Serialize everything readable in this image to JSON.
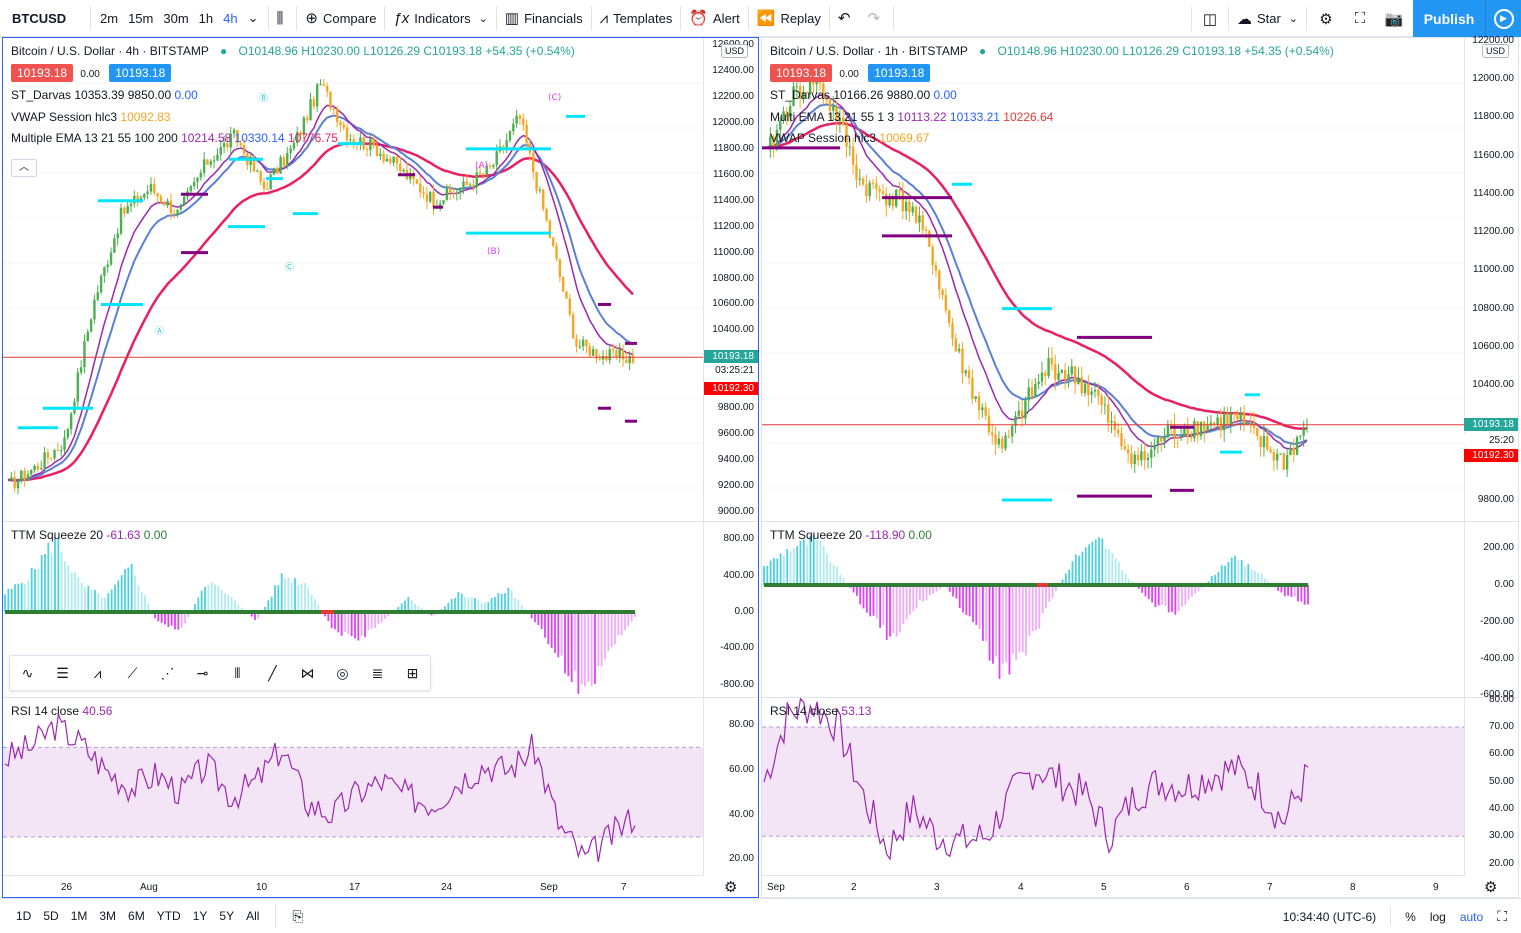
{
  "toolbar": {
    "symbol": "BTCUSD",
    "intervals": [
      "2m",
      "15m",
      "30m",
      "1h",
      "4h"
    ],
    "active_interval": "4h",
    "compare_label": "Compare",
    "indicators_label": "Indicators",
    "financials_label": "Financials",
    "templates_label": "Templates",
    "alert_label": "Alert",
    "replay_label": "Replay",
    "layout_name": "Star",
    "publish_label": "Publish"
  },
  "left_chart": {
    "title": "Bitcoin / U.S. Dollar · 4h · BITSTAMP",
    "ohlc": "O10148.96 H10230.00 L10126.29 C10193.18 +54.35 (+0.54%)",
    "sell_price": "10193.18",
    "spread": "0.00",
    "buy_price": "10193.18",
    "indicators": [
      {
        "name": "ST_Darvas",
        "values": [
          {
            "v": "10353.39",
            "c": "#131722"
          },
          {
            "v": "9850.00",
            "c": "#131722"
          },
          {
            "v": "0.00",
            "c": "#2962ff"
          }
        ]
      },
      {
        "name": "VWAP Session hlc3",
        "values": [
          {
            "v": "10092.83",
            "c": "#f5a623"
          }
        ]
      },
      {
        "name": "Multiple EMA 13 21 55 100 200",
        "values": [
          {
            "v": "10214.58",
            "c": "#9c27b0"
          },
          {
            "v": "10330.14",
            "c": "#2962ff"
          },
          {
            "v": "10776.75",
            "c": "#e91e63"
          }
        ]
      }
    ],
    "price_axis": [
      "12400.00",
      "12200.00",
      "12000.00",
      "11800.00",
      "11600.00",
      "11400.00",
      "11200.00",
      "11000.00",
      "10800.00",
      "10600.00",
      "10400.00",
      "9800.00",
      "9600.00",
      "9400.00",
      "9200.00",
      "9000.00"
    ],
    "price_axis_top": "12600.00",
    "last_price": "10193.18",
    "countdown": "03:25:21",
    "low_tag": "10192.30",
    "currency": "USD",
    "squeeze": {
      "label": "TTM Squeeze 20",
      "v1": "-61.63",
      "v2": "0.00",
      "axis": [
        "800.00",
        "400.00",
        "0.00",
        "-400.00",
        "-800.00"
      ]
    },
    "rsi": {
      "label": "RSI 14 close",
      "value": "40.56",
      "axis": [
        "80.00",
        "60.00",
        "40.00",
        "20.00"
      ]
    },
    "time_axis": [
      "26",
      "Aug",
      "10",
      "17",
      "24",
      "Sep",
      "7"
    ],
    "wave_labels": [
      "Ⓐ",
      "Ⓑ",
      "Ⓒ",
      "(A)",
      "(B)",
      "(C)"
    ]
  },
  "right_chart": {
    "title": "Bitcoin / U.S. Dollar · 1h · BITSTAMP",
    "ohlc": "O10148.96 H10230.00 L10126.29 C10193.18 +54.35 (+0.54%)",
    "sell_price": "10193.18",
    "spread": "0.00",
    "buy_price": "10193.18",
    "indicators": [
      {
        "name": "ST_Darvas",
        "values": [
          {
            "v": "10166.26",
            "c": "#131722"
          },
          {
            "v": "9880.00",
            "c": "#131722"
          },
          {
            "v": "0.00",
            "c": "#2962ff"
          }
        ]
      },
      {
        "name": "Multi EMA 13 21 55 1 3",
        "values": [
          {
            "v": "10113.22",
            "c": "#9c27b0"
          },
          {
            "v": "10133.21",
            "c": "#2962ff"
          },
          {
            "v": "10226.64",
            "c": "#e53935"
          }
        ]
      },
      {
        "name": "VWAP Session hlc3",
        "values": [
          {
            "v": "10069.67",
            "c": "#f5a623"
          }
        ]
      }
    ],
    "price_axis": [
      "12000.00",
      "11800.00",
      "11600.00",
      "11400.00",
      "11200.00",
      "11000.00",
      "10800.00",
      "10600.00",
      "10400.00",
      "9800.00"
    ],
    "price_axis_top": "12200.00",
    "last_price": "10193.18",
    "countdown": "25:20",
    "low_tag": "10192.30",
    "currency": "USD",
    "squeeze": {
      "label": "TTM Squeeze 20",
      "v1": "-118.90",
      "v2": "0.00",
      "axis": [
        "200.00",
        "0.00",
        "-200.00",
        "-400.00",
        "-600.00"
      ]
    },
    "rsi": {
      "label": "RSI 14 close",
      "value": "53.13",
      "axis": [
        "80.00",
        "70.00",
        "60.00",
        "50.00",
        "40.00",
        "30.00",
        "20.00"
      ]
    },
    "time_axis": [
      "Sep",
      "2",
      "3",
      "4",
      "5",
      "6",
      "7",
      "8",
      "9"
    ]
  },
  "bottom": {
    "ranges": [
      "1D",
      "5D",
      "1M",
      "3M",
      "6M",
      "YTD",
      "1Y",
      "5Y",
      "All"
    ],
    "clock": "10:34:40 (UTC-6)",
    "percent_label": "%",
    "log_label": "log",
    "auto_label": "auto"
  },
  "colors": {
    "up_candle": "#f5a623",
    "bull_candle": "#4caf50",
    "ema_fast": "#9c27b0",
    "ema_mid": "#5b7fd6",
    "ema_slow": "#e91e63",
    "darvas_top": "#00e5ff",
    "darvas_bottom": "#800080",
    "sell": "#ef5350",
    "buy": "#2196f3",
    "rsi_line": "#9c27b0",
    "rsi_band": "#f3e5f5",
    "squeeze_pos": "#4dd0e1",
    "squeeze_neg": "#e040fb"
  }
}
